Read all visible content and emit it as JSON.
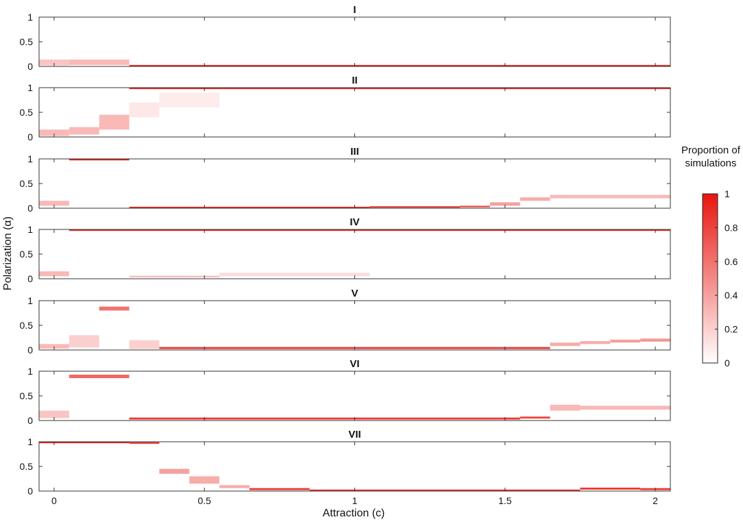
{
  "chart_data": {
    "type": "heatmap",
    "xlabel": "Attraction (c)",
    "ylabel": "Polarization (α)",
    "xlim": [
      -0.05,
      2.05
    ],
    "ylim": [
      0,
      1
    ],
    "xticks": [
      "0",
      "0.5",
      "1",
      "1.5",
      "2"
    ],
    "yticks": [
      "0",
      "0.5",
      "1"
    ],
    "colorbar": {
      "title": "Proportion of simulations",
      "ticks": [
        "0",
        "0.2",
        "0.4",
        "0.6",
        "0.8",
        "1"
      ],
      "color_min": "#ffffff",
      "color_max": "#e8150f"
    },
    "panels": [
      {
        "title": "I",
        "cells": [
          {
            "x0": -0.05,
            "x1": 0.05,
            "y0": 0.02,
            "y1": 0.14,
            "p": 0.25
          },
          {
            "x0": 0.05,
            "x1": 0.25,
            "y0": 0.03,
            "y1": 0.14,
            "p": 0.3
          },
          {
            "x0": 0.25,
            "x1": 2.05,
            "y0": 0.0,
            "y1": 0.03,
            "p": 0.9
          }
        ]
      },
      {
        "title": "II",
        "cells": [
          {
            "x0": -0.05,
            "x1": 0.05,
            "y0": 0.02,
            "y1": 0.15,
            "p": 0.3
          },
          {
            "x0": 0.05,
            "x1": 0.15,
            "y0": 0.05,
            "y1": 0.2,
            "p": 0.3
          },
          {
            "x0": 0.15,
            "x1": 0.25,
            "y0": 0.15,
            "y1": 0.45,
            "p": 0.3
          },
          {
            "x0": 0.25,
            "x1": 0.35,
            "y0": 0.4,
            "y1": 0.7,
            "p": 0.1
          },
          {
            "x0": 0.35,
            "x1": 0.55,
            "y0": 0.6,
            "y1": 0.9,
            "p": 0.08
          },
          {
            "x0": 0.25,
            "x1": 2.05,
            "y0": 0.97,
            "y1": 1.0,
            "p": 0.9
          }
        ]
      },
      {
        "title": "III",
        "cells": [
          {
            "x0": -0.05,
            "x1": 0.05,
            "y0": 0.05,
            "y1": 0.15,
            "p": 0.3
          },
          {
            "x0": 0.05,
            "x1": 0.25,
            "y0": 0.97,
            "y1": 1.0,
            "p": 0.95
          },
          {
            "x0": 0.25,
            "x1": 1.05,
            "y0": 0.0,
            "y1": 0.03,
            "p": 0.9
          },
          {
            "x0": 1.05,
            "x1": 1.35,
            "y0": 0.01,
            "y1": 0.04,
            "p": 0.85
          },
          {
            "x0": 1.35,
            "x1": 1.45,
            "y0": 0.02,
            "y1": 0.05,
            "p": 0.8
          },
          {
            "x0": 1.45,
            "x1": 1.55,
            "y0": 0.05,
            "y1": 0.12,
            "p": 0.4
          },
          {
            "x0": 1.55,
            "x1": 1.65,
            "y0": 0.15,
            "y1": 0.22,
            "p": 0.35
          },
          {
            "x0": 1.65,
            "x1": 2.05,
            "y0": 0.2,
            "y1": 0.27,
            "p": 0.3
          }
        ]
      },
      {
        "title": "IV",
        "cells": [
          {
            "x0": -0.05,
            "x1": 0.05,
            "y0": 0.05,
            "y1": 0.15,
            "p": 0.3
          },
          {
            "x0": 0.05,
            "x1": 2.05,
            "y0": 0.97,
            "y1": 1.0,
            "p": 0.9
          },
          {
            "x0": 0.25,
            "x1": 0.55,
            "y0": 0.03,
            "y1": 0.06,
            "p": 0.3
          },
          {
            "x0": 0.55,
            "x1": 1.05,
            "y0": 0.05,
            "y1": 0.12,
            "p": 0.15
          }
        ]
      },
      {
        "title": "V",
        "cells": [
          {
            "x0": -0.05,
            "x1": 0.05,
            "y0": 0.03,
            "y1": 0.12,
            "p": 0.3
          },
          {
            "x0": 0.05,
            "x1": 0.15,
            "y0": 0.05,
            "y1": 0.3,
            "p": 0.2
          },
          {
            "x0": 0.15,
            "x1": 0.25,
            "y0": 0.8,
            "y1": 0.88,
            "p": 0.6
          },
          {
            "x0": 0.25,
            "x1": 0.35,
            "y0": 0.02,
            "y1": 0.2,
            "p": 0.2
          },
          {
            "x0": 0.35,
            "x1": 1.65,
            "y0": 0.02,
            "y1": 0.06,
            "p": 0.85
          },
          {
            "x0": 1.65,
            "x1": 1.75,
            "y0": 0.08,
            "y1": 0.15,
            "p": 0.35
          },
          {
            "x0": 1.75,
            "x1": 1.85,
            "y0": 0.12,
            "y1": 0.18,
            "p": 0.35
          },
          {
            "x0": 1.85,
            "x1": 1.95,
            "y0": 0.15,
            "y1": 0.21,
            "p": 0.4
          },
          {
            "x0": 1.95,
            "x1": 2.05,
            "y0": 0.17,
            "y1": 0.23,
            "p": 0.45
          }
        ]
      },
      {
        "title": "VI",
        "cells": [
          {
            "x0": -0.05,
            "x1": 0.05,
            "y0": 0.05,
            "y1": 0.2,
            "p": 0.25
          },
          {
            "x0": 0.05,
            "x1": 0.25,
            "y0": 0.86,
            "y1": 0.93,
            "p": 0.65
          },
          {
            "x0": 0.25,
            "x1": 1.55,
            "y0": 0.02,
            "y1": 0.06,
            "p": 0.85
          },
          {
            "x0": 1.55,
            "x1": 1.65,
            "y0": 0.04,
            "y1": 0.08,
            "p": 0.8
          },
          {
            "x0": 1.65,
            "x1": 1.75,
            "y0": 0.2,
            "y1": 0.32,
            "p": 0.3
          },
          {
            "x0": 1.75,
            "x1": 2.05,
            "y0": 0.22,
            "y1": 0.3,
            "p": 0.3
          }
        ]
      },
      {
        "title": "VII",
        "cells": [
          {
            "x0": -0.05,
            "x1": 0.25,
            "y0": 0.97,
            "y1": 1.0,
            "p": 0.95
          },
          {
            "x0": 0.25,
            "x1": 0.35,
            "y0": 0.96,
            "y1": 0.99,
            "p": 0.9
          },
          {
            "x0": 0.35,
            "x1": 0.45,
            "y0": 0.35,
            "y1": 0.45,
            "p": 0.4
          },
          {
            "x0": 0.45,
            "x1": 0.55,
            "y0": 0.15,
            "y1": 0.3,
            "p": 0.35
          },
          {
            "x0": 0.55,
            "x1": 0.65,
            "y0": 0.06,
            "y1": 0.12,
            "p": 0.35
          },
          {
            "x0": 0.65,
            "x1": 0.85,
            "y0": 0.02,
            "y1": 0.06,
            "p": 0.85
          },
          {
            "x0": 0.85,
            "x1": 1.75,
            "y0": 0.0,
            "y1": 0.03,
            "p": 0.9
          },
          {
            "x0": 1.75,
            "x1": 1.95,
            "y0": 0.03,
            "y1": 0.07,
            "p": 0.85
          },
          {
            "x0": 1.95,
            "x1": 2.05,
            "y0": 0.02,
            "y1": 0.06,
            "p": 0.85
          }
        ]
      }
    ]
  }
}
